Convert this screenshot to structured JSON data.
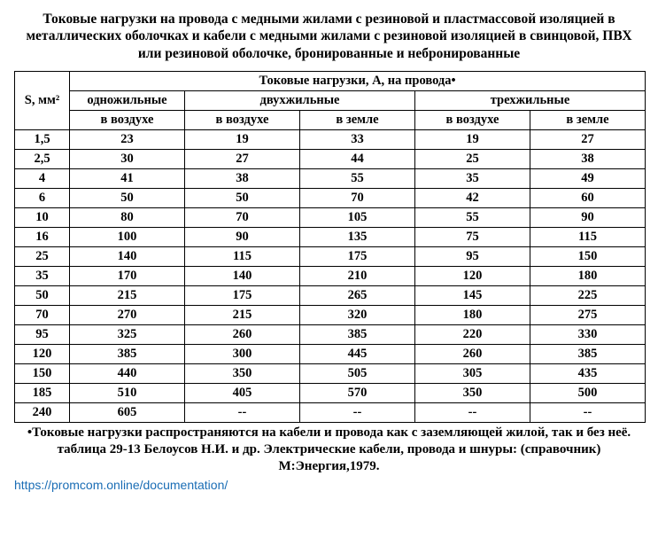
{
  "title": "Токовые нагрузки на провода с медными жилами с резиновой и пластмассовой изоляцией в металлических оболочках и кабели с медными жилами с резиновой изоляцией в свинцовой, ПВХ или резиновой оболочке, бронированные и небронированные",
  "header": {
    "sectionLabel": "S, мм²",
    "groupLabel": "Токовые нагрузки, А, на провода•",
    "col1": "одножильные",
    "col2": "двухжильные",
    "col3": "трехжильные",
    "sub_air": "в воздухе",
    "sub_ground": "в земле"
  },
  "rows": [
    {
      "s": "1,5",
      "a": "23",
      "b": "19",
      "c": "33",
      "d": "19",
      "e": "27"
    },
    {
      "s": "2,5",
      "a": "30",
      "b": "27",
      "c": "44",
      "d": "25",
      "e": "38"
    },
    {
      "s": "4",
      "a": "41",
      "b": "38",
      "c": "55",
      "d": "35",
      "e": "49"
    },
    {
      "s": "6",
      "a": "50",
      "b": "50",
      "c": "70",
      "d": "42",
      "e": "60"
    },
    {
      "s": "10",
      "a": "80",
      "b": "70",
      "c": "105",
      "d": "55",
      "e": "90"
    },
    {
      "s": "16",
      "a": "100",
      "b": "90",
      "c": "135",
      "d": "75",
      "e": "115"
    },
    {
      "s": "25",
      "a": "140",
      "b": "115",
      "c": "175",
      "d": "95",
      "e": "150"
    },
    {
      "s": "35",
      "a": "170",
      "b": "140",
      "c": "210",
      "d": "120",
      "e": "180"
    },
    {
      "s": "50",
      "a": "215",
      "b": "175",
      "c": "265",
      "d": "145",
      "e": "225"
    },
    {
      "s": "70",
      "a": "270",
      "b": "215",
      "c": "320",
      "d": "180",
      "e": "275"
    },
    {
      "s": "95",
      "a": "325",
      "b": "260",
      "c": "385",
      "d": "220",
      "e": "330"
    },
    {
      "s": "120",
      "a": "385",
      "b": "300",
      "c": "445",
      "d": "260",
      "e": "385"
    },
    {
      "s": "150",
      "a": "440",
      "b": "350",
      "c": "505",
      "d": "305",
      "e": "435"
    },
    {
      "s": "185",
      "a": "510",
      "b": "405",
      "c": "570",
      "d": "350",
      "e": "500"
    },
    {
      "s": "240",
      "a": "605",
      "b": "--",
      "c": "--",
      "d": "--",
      "e": "--"
    }
  ],
  "footnote": "•Токовые нагрузки распространяются на кабели и провода как с заземляющей жилой, так и без неё.",
  "source": "таблица 29-13 Белоусов Н.И. и др. Электрические кабели, провода и шнуры: (справочник) М:Энергия,1979.",
  "link": "https://promcom.online/documentation/"
}
